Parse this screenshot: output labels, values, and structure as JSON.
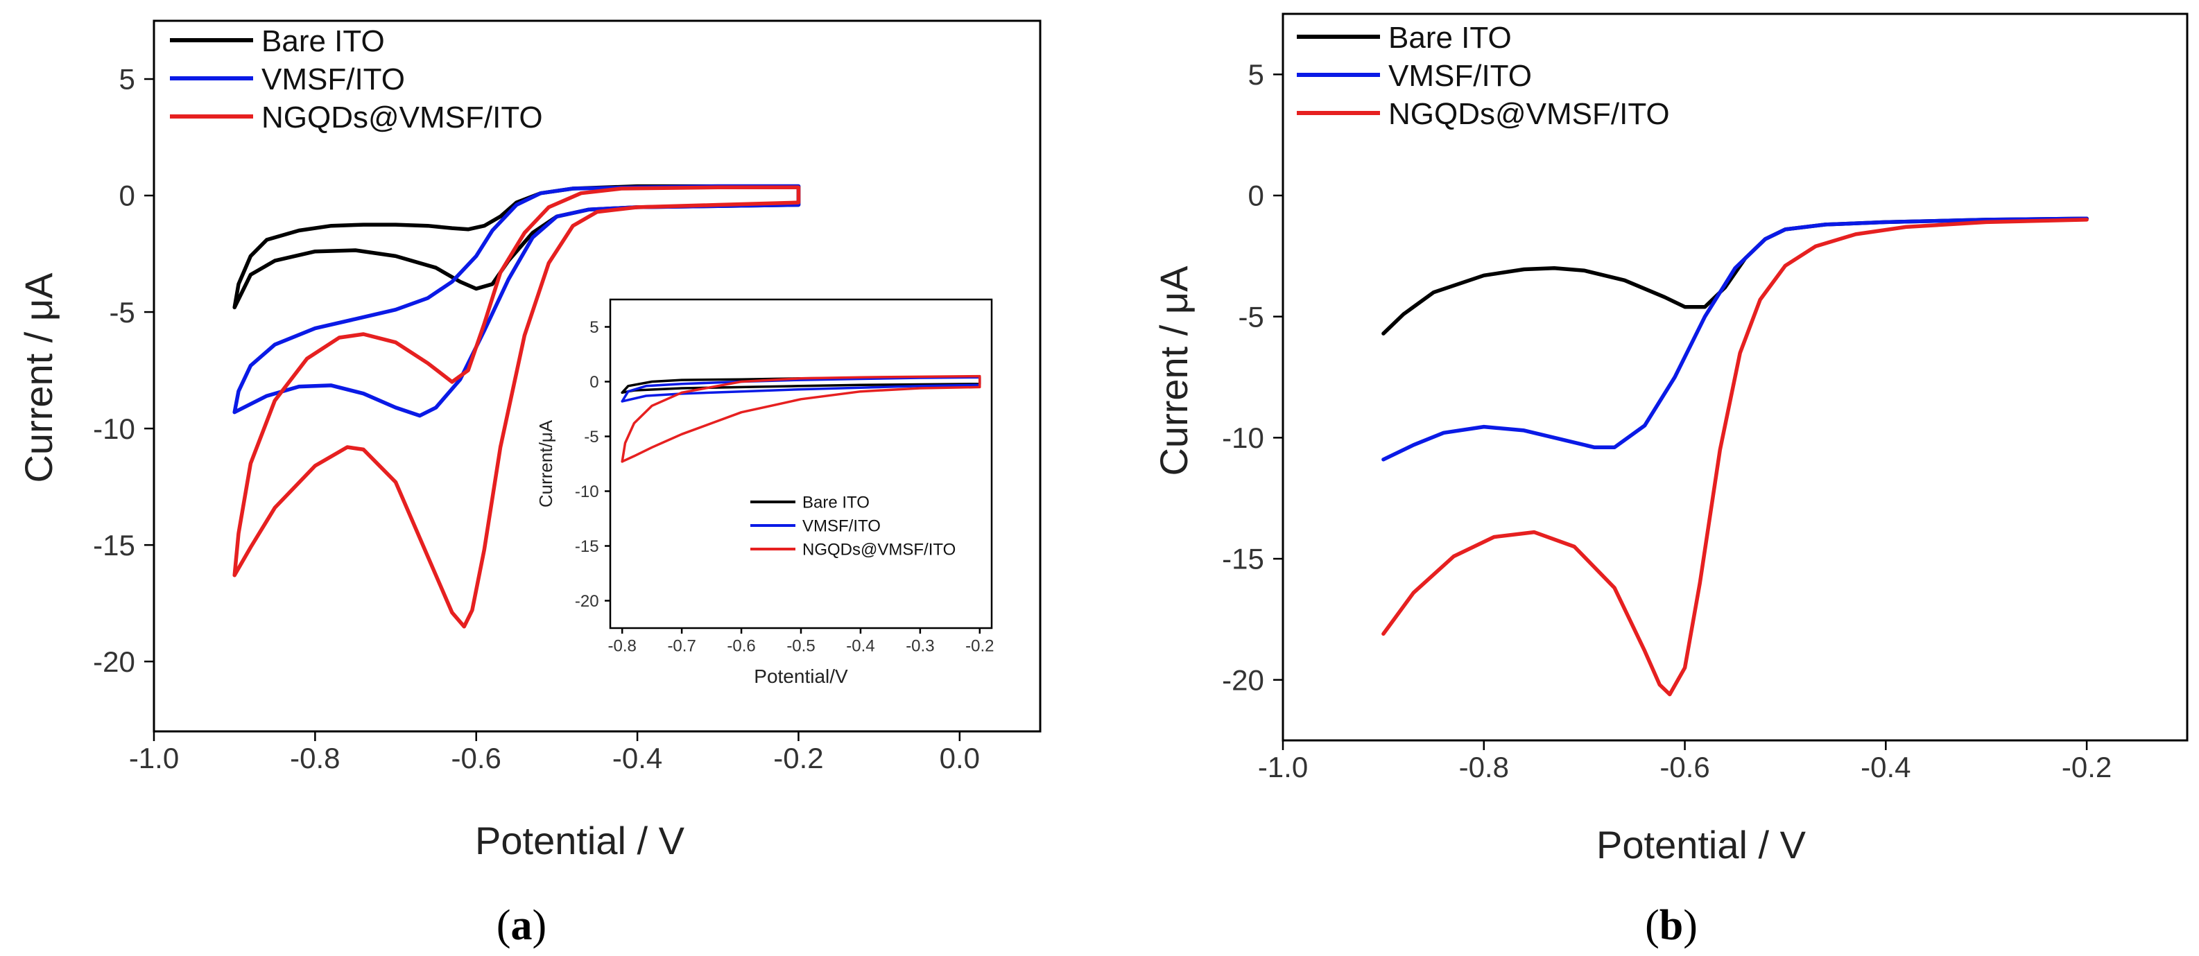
{
  "chart_data": [
    {
      "type": "line",
      "panel_label": "(a)",
      "panel_label_letter": "a",
      "xlabel": "Potential / V",
      "ylabel": "Current / μA",
      "xlim": [
        -1.0,
        0.1
      ],
      "ylim": [
        -23,
        7.5
      ],
      "xticks": [
        -1.0,
        -0.8,
        -0.6,
        -0.4,
        -0.2,
        0.0
      ],
      "xtick_labels": [
        "-1.0",
        "-0.8",
        "-0.6",
        "-0.4",
        "-0.2",
        "0.0"
      ],
      "yticks": [
        5,
        0,
        -5,
        -10,
        -15,
        -20
      ],
      "ytick_labels": [
        "5",
        "0",
        "-5",
        "-10",
        "-15",
        "-20"
      ],
      "legend_position": "top-left",
      "series": [
        {
          "name": "Bare ITO",
          "color": "#000000",
          "points": [
            [
              -0.9,
              -4.8
            ],
            [
              -0.895,
              -3.8
            ],
            [
              -0.88,
              -2.6
            ],
            [
              -0.86,
              -1.9
            ],
            [
              -0.82,
              -1.5
            ],
            [
              -0.78,
              -1.3
            ],
            [
              -0.74,
              -1.25
            ],
            [
              -0.7,
              -1.25
            ],
            [
              -0.66,
              -1.3
            ],
            [
              -0.63,
              -1.4
            ],
            [
              -0.61,
              -1.45
            ],
            [
              -0.59,
              -1.3
            ],
            [
              -0.57,
              -0.9
            ],
            [
              -0.55,
              -0.3
            ],
            [
              -0.52,
              0.1
            ],
            [
              -0.48,
              0.3
            ],
            [
              -0.4,
              0.4
            ],
            [
              -0.3,
              0.4
            ],
            [
              -0.2,
              0.4
            ],
            [
              -0.2,
              -0.4
            ],
            [
              -0.3,
              -0.45
            ],
            [
              -0.4,
              -0.5
            ],
            [
              -0.46,
              -0.6
            ],
            [
              -0.5,
              -0.9
            ],
            [
              -0.53,
              -1.6
            ],
            [
              -0.56,
              -2.8
            ],
            [
              -0.58,
              -3.8
            ],
            [
              -0.6,
              -4.0
            ],
            [
              -0.62,
              -3.7
            ],
            [
              -0.65,
              -3.1
            ],
            [
              -0.7,
              -2.6
            ],
            [
              -0.75,
              -2.35
            ],
            [
              -0.8,
              -2.4
            ],
            [
              -0.85,
              -2.8
            ],
            [
              -0.88,
              -3.4
            ],
            [
              -0.9,
              -4.8
            ]
          ]
        },
        {
          "name": "VMSF/ITO",
          "color": "#0a1ae6",
          "points": [
            [
              -0.9,
              -9.3
            ],
            [
              -0.895,
              -8.4
            ],
            [
              -0.88,
              -7.3
            ],
            [
              -0.85,
              -6.4
            ],
            [
              -0.8,
              -5.7
            ],
            [
              -0.75,
              -5.3
            ],
            [
              -0.7,
              -4.9
            ],
            [
              -0.66,
              -4.4
            ],
            [
              -0.63,
              -3.7
            ],
            [
              -0.6,
              -2.6
            ],
            [
              -0.58,
              -1.5
            ],
            [
              -0.55,
              -0.4
            ],
            [
              -0.52,
              0.1
            ],
            [
              -0.48,
              0.3
            ],
            [
              -0.4,
              0.35
            ],
            [
              -0.3,
              0.4
            ],
            [
              -0.2,
              0.4
            ],
            [
              -0.2,
              -0.4
            ],
            [
              -0.3,
              -0.45
            ],
            [
              -0.4,
              -0.5
            ],
            [
              -0.46,
              -0.6
            ],
            [
              -0.5,
              -0.9
            ],
            [
              -0.53,
              -1.8
            ],
            [
              -0.56,
              -3.6
            ],
            [
              -0.59,
              -5.8
            ],
            [
              -0.62,
              -7.9
            ],
            [
              -0.65,
              -9.1
            ],
            [
              -0.67,
              -9.45
            ],
            [
              -0.7,
              -9.1
            ],
            [
              -0.74,
              -8.5
            ],
            [
              -0.78,
              -8.15
            ],
            [
              -0.82,
              -8.2
            ],
            [
              -0.86,
              -8.6
            ],
            [
              -0.88,
              -8.95
            ],
            [
              -0.9,
              -9.3
            ]
          ]
        },
        {
          "name": "NGQDs@VMSF/ITO",
          "color": "#e62020",
          "points": [
            [
              -0.9,
              -16.3
            ],
            [
              -0.895,
              -14.5
            ],
            [
              -0.88,
              -11.5
            ],
            [
              -0.85,
              -8.8
            ],
            [
              -0.81,
              -7.0
            ],
            [
              -0.77,
              -6.1
            ],
            [
              -0.74,
              -5.95
            ],
            [
              -0.7,
              -6.3
            ],
            [
              -0.66,
              -7.2
            ],
            [
              -0.63,
              -8.0
            ],
            [
              -0.61,
              -7.5
            ],
            [
              -0.59,
              -5.5
            ],
            [
              -0.57,
              -3.3
            ],
            [
              -0.54,
              -1.6
            ],
            [
              -0.51,
              -0.5
            ],
            [
              -0.47,
              0.1
            ],
            [
              -0.42,
              0.3
            ],
            [
              -0.3,
              0.35
            ],
            [
              -0.2,
              0.35
            ],
            [
              -0.2,
              -0.3
            ],
            [
              -0.3,
              -0.4
            ],
            [
              -0.4,
              -0.5
            ],
            [
              -0.45,
              -0.7
            ],
            [
              -0.48,
              -1.3
            ],
            [
              -0.51,
              -2.9
            ],
            [
              -0.54,
              -6.0
            ],
            [
              -0.57,
              -10.8
            ],
            [
              -0.59,
              -15.2
            ],
            [
              -0.605,
              -17.8
            ],
            [
              -0.615,
              -18.5
            ],
            [
              -0.63,
              -17.9
            ],
            [
              -0.66,
              -15.5
            ],
            [
              -0.7,
              -12.3
            ],
            [
              -0.74,
              -10.9
            ],
            [
              -0.76,
              -10.8
            ],
            [
              -0.8,
              -11.6
            ],
            [
              -0.85,
              -13.4
            ],
            [
              -0.88,
              -15.1
            ],
            [
              -0.9,
              -16.3
            ]
          ]
        }
      ],
      "inset": {
        "type": "line",
        "xlabel": "Potential/V",
        "ylabel": "Current/μA",
        "xlim": [
          -0.82,
          -0.18
        ],
        "ylim": [
          -22.5,
          7.5
        ],
        "xticks": [
          -0.8,
          -0.7,
          -0.6,
          -0.5,
          -0.4,
          -0.3,
          -0.2
        ],
        "xtick_labels": [
          "-0.8",
          "-0.7",
          "-0.6",
          "-0.5",
          "-0.4",
          "-0.3",
          "-0.2"
        ],
        "yticks": [
          5,
          0,
          -5,
          -10,
          -15,
          -20
        ],
        "ytick_labels": [
          "5",
          "0",
          "-5",
          "-10",
          "-15",
          "-20"
        ],
        "legend_position": "bottom-right",
        "series": [
          {
            "name": "Bare ITO",
            "color": "#000000",
            "points": [
              [
                -0.8,
                -1.0
              ],
              [
                -0.79,
                -0.4
              ],
              [
                -0.75,
                0.0
              ],
              [
                -0.7,
                0.15
              ],
              [
                -0.6,
                0.2
              ],
              [
                -0.5,
                0.3
              ],
              [
                -0.4,
                0.35
              ],
              [
                -0.3,
                0.4
              ],
              [
                -0.2,
                0.4
              ],
              [
                -0.2,
                -0.2
              ],
              [
                -0.3,
                -0.25
              ],
              [
                -0.4,
                -0.3
              ],
              [
                -0.5,
                -0.4
              ],
              [
                -0.6,
                -0.5
              ],
              [
                -0.7,
                -0.6
              ],
              [
                -0.78,
                -0.8
              ],
              [
                -0.8,
                -1.0
              ]
            ]
          },
          {
            "name": "VMSF/ITO",
            "color": "#0a1ae6",
            "points": [
              [
                -0.8,
                -1.8
              ],
              [
                -0.79,
                -0.9
              ],
              [
                -0.76,
                -0.4
              ],
              [
                -0.7,
                -0.2
              ],
              [
                -0.6,
                0.0
              ],
              [
                -0.5,
                0.15
              ],
              [
                -0.4,
                0.25
              ],
              [
                -0.3,
                0.35
              ],
              [
                -0.2,
                0.4
              ],
              [
                -0.2,
                -0.3
              ],
              [
                -0.3,
                -0.4
              ],
              [
                -0.4,
                -0.55
              ],
              [
                -0.5,
                -0.7
              ],
              [
                -0.6,
                -0.9
              ],
              [
                -0.7,
                -1.1
              ],
              [
                -0.76,
                -1.3
              ],
              [
                -0.8,
                -1.8
              ]
            ]
          },
          {
            "name": "NGQDs@VMSF/ITO",
            "color": "#e62020",
            "points": [
              [
                -0.8,
                -7.3
              ],
              [
                -0.795,
                -5.6
              ],
              [
                -0.78,
                -3.8
              ],
              [
                -0.75,
                -2.2
              ],
              [
                -0.7,
                -1.0
              ],
              [
                -0.6,
                0.0
              ],
              [
                -0.5,
                0.3
              ],
              [
                -0.4,
                0.4
              ],
              [
                -0.3,
                0.45
              ],
              [
                -0.2,
                0.5
              ],
              [
                -0.2,
                -0.5
              ],
              [
                -0.3,
                -0.6
              ],
              [
                -0.4,
                -0.9
              ],
              [
                -0.5,
                -1.6
              ],
              [
                -0.55,
                -2.2
              ],
              [
                -0.6,
                -2.8
              ],
              [
                -0.65,
                -3.8
              ],
              [
                -0.7,
                -4.8
              ],
              [
                -0.75,
                -6.0
              ],
              [
                -0.78,
                -6.8
              ],
              [
                -0.8,
                -7.3
              ]
            ]
          }
        ]
      }
    },
    {
      "type": "line",
      "panel_label": "(b)",
      "panel_label_letter": "b",
      "xlabel": "Potential / V",
      "ylabel": "Current / μA",
      "xlim": [
        -1.0,
        -0.1
      ],
      "ylim": [
        -22.5,
        7.5
      ],
      "xticks": [
        -1.0,
        -0.8,
        -0.6,
        -0.4,
        -0.2
      ],
      "xtick_labels": [
        "-1.0",
        "-0.8",
        "-0.6",
        "-0.4",
        "-0.2"
      ],
      "yticks": [
        5,
        0,
        -5,
        -10,
        -15,
        -20
      ],
      "ytick_labels": [
        "5",
        "0",
        "-5",
        "-10",
        "-15",
        "-20"
      ],
      "legend_position": "top-left",
      "series": [
        {
          "name": "Bare ITO",
          "color": "#000000",
          "points": [
            [
              -0.9,
              -5.7
            ],
            [
              -0.88,
              -4.9
            ],
            [
              -0.85,
              -4.0
            ],
            [
              -0.8,
              -3.3
            ],
            [
              -0.76,
              -3.05
            ],
            [
              -0.73,
              -3.0
            ],
            [
              -0.7,
              -3.1
            ],
            [
              -0.66,
              -3.5
            ],
            [
              -0.62,
              -4.2
            ],
            [
              -0.6,
              -4.6
            ],
            [
              -0.58,
              -4.6
            ],
            [
              -0.56,
              -3.8
            ],
            [
              -0.54,
              -2.6
            ],
            [
              -0.52,
              -1.8
            ],
            [
              -0.5,
              -1.4
            ],
            [
              -0.46,
              -1.2
            ],
            [
              -0.4,
              -1.1
            ],
            [
              -0.3,
              -1.0
            ],
            [
              -0.2,
              -0.95
            ]
          ]
        },
        {
          "name": "VMSF/ITO",
          "color": "#0a1ae6",
          "points": [
            [
              -0.9,
              -10.9
            ],
            [
              -0.87,
              -10.3
            ],
            [
              -0.84,
              -9.8
            ],
            [
              -0.8,
              -9.55
            ],
            [
              -0.76,
              -9.7
            ],
            [
              -0.72,
              -10.1
            ],
            [
              -0.69,
              -10.4
            ],
            [
              -0.67,
              -10.4
            ],
            [
              -0.64,
              -9.5
            ],
            [
              -0.61,
              -7.5
            ],
            [
              -0.58,
              -5.0
            ],
            [
              -0.55,
              -3.0
            ],
            [
              -0.52,
              -1.8
            ],
            [
              -0.5,
              -1.4
            ],
            [
              -0.46,
              -1.2
            ],
            [
              -0.4,
              -1.1
            ],
            [
              -0.3,
              -1.0
            ],
            [
              -0.2,
              -0.95
            ]
          ]
        },
        {
          "name": "NGQDs@VMSF/ITO",
          "color": "#e62020",
          "points": [
            [
              -0.9,
              -18.1
            ],
            [
              -0.87,
              -16.4
            ],
            [
              -0.83,
              -14.9
            ],
            [
              -0.79,
              -14.1
            ],
            [
              -0.75,
              -13.9
            ],
            [
              -0.71,
              -14.5
            ],
            [
              -0.67,
              -16.2
            ],
            [
              -0.64,
              -18.8
            ],
            [
              -0.625,
              -20.2
            ],
            [
              -0.615,
              -20.6
            ],
            [
              -0.6,
              -19.5
            ],
            [
              -0.585,
              -16.0
            ],
            [
              -0.565,
              -10.5
            ],
            [
              -0.545,
              -6.5
            ],
            [
              -0.525,
              -4.3
            ],
            [
              -0.5,
              -2.9
            ],
            [
              -0.47,
              -2.1
            ],
            [
              -0.43,
              -1.6
            ],
            [
              -0.38,
              -1.3
            ],
            [
              -0.3,
              -1.1
            ],
            [
              -0.2,
              -1.0
            ]
          ]
        }
      ]
    }
  ]
}
